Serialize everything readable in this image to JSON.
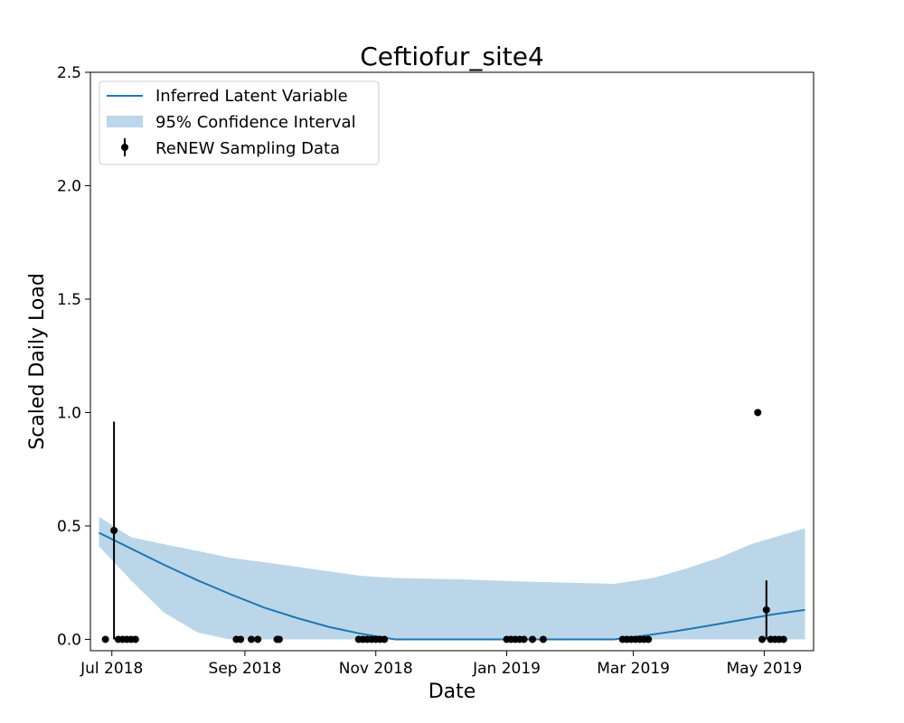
{
  "chart_data": {
    "type": "line",
    "title": "Ceftiofur_site4",
    "xlabel": "Date",
    "ylabel": "Scaled Daily Load",
    "xlim": [
      "2018-06-21",
      "2019-05-24"
    ],
    "ylim": [
      -0.05,
      2.5
    ],
    "x_ticks": [
      {
        "date": "2018-07-01",
        "label": "Jul 2018"
      },
      {
        "date": "2018-09-01",
        "label": "Sep 2018"
      },
      {
        "date": "2018-11-01",
        "label": "Nov 2018"
      },
      {
        "date": "2019-01-01",
        "label": "Jan 2019"
      },
      {
        "date": "2019-03-01",
        "label": "Mar 2019"
      },
      {
        "date": "2019-05-01",
        "label": "May 2019"
      }
    ],
    "y_ticks": [
      {
        "value": 0.0,
        "label": "0.0"
      },
      {
        "value": 0.5,
        "label": "0.5"
      },
      {
        "value": 1.0,
        "label": "1.0"
      },
      {
        "value": 1.5,
        "label": "1.5"
      },
      {
        "value": 2.0,
        "label": "2.0"
      },
      {
        "value": 2.5,
        "label": "2.5"
      }
    ],
    "grid": false,
    "legend_position": "top-left",
    "legend": [
      {
        "label": "Inferred Latent Variable",
        "kind": "line",
        "color": "#1f77b4"
      },
      {
        "label": "95% Confidence Interval",
        "kind": "band",
        "color": "#bcd6ea"
      },
      {
        "label": "ReNEW Sampling Data",
        "kind": "errorbar",
        "color": "#000000"
      }
    ],
    "series": [
      {
        "name": "Inferred Latent Variable",
        "type": "line",
        "color": "#1f77b4",
        "points": [
          {
            "x": "2018-06-25",
            "y": 0.47
          },
          {
            "x": "2018-07-10",
            "y": 0.4
          },
          {
            "x": "2018-07-25",
            "y": 0.33
          },
          {
            "x": "2018-08-10",
            "y": 0.26
          },
          {
            "x": "2018-08-25",
            "y": 0.2
          },
          {
            "x": "2018-09-10",
            "y": 0.14
          },
          {
            "x": "2018-09-25",
            "y": 0.095
          },
          {
            "x": "2018-10-10",
            "y": 0.055
          },
          {
            "x": "2018-10-25",
            "y": 0.025
          },
          {
            "x": "2018-11-10",
            "y": 0.0
          },
          {
            "x": "2019-02-20",
            "y": 0.0
          },
          {
            "x": "2019-03-05",
            "y": 0.015
          },
          {
            "x": "2019-03-20",
            "y": 0.035
          },
          {
            "x": "2019-04-05",
            "y": 0.06
          },
          {
            "x": "2019-04-20",
            "y": 0.085
          },
          {
            "x": "2019-05-05",
            "y": 0.11
          },
          {
            "x": "2019-05-20",
            "y": 0.13
          }
        ]
      },
      {
        "name": "95% Confidence Interval",
        "type": "band",
        "color": "#1f77b4",
        "opacity": 0.3,
        "points": [
          {
            "x": "2018-06-25",
            "lower": 0.41,
            "upper": 0.54
          },
          {
            "x": "2018-07-10",
            "lower": 0.26,
            "upper": 0.45
          },
          {
            "x": "2018-07-25",
            "lower": 0.12,
            "upper": 0.42
          },
          {
            "x": "2018-08-10",
            "lower": 0.03,
            "upper": 0.39
          },
          {
            "x": "2018-08-25",
            "lower": 0.0,
            "upper": 0.36
          },
          {
            "x": "2018-09-10",
            "lower": 0.0,
            "upper": 0.34
          },
          {
            "x": "2018-09-25",
            "lower": 0.0,
            "upper": 0.32
          },
          {
            "x": "2018-10-10",
            "lower": 0.0,
            "upper": 0.3
          },
          {
            "x": "2018-10-25",
            "lower": 0.0,
            "upper": 0.28
          },
          {
            "x": "2018-11-10",
            "lower": 0.0,
            "upper": 0.27
          },
          {
            "x": "2018-12-10",
            "lower": 0.0,
            "upper": 0.265
          },
          {
            "x": "2019-01-10",
            "lower": 0.0,
            "upper": 0.255
          },
          {
            "x": "2019-02-20",
            "lower": 0.0,
            "upper": 0.245
          },
          {
            "x": "2019-03-10",
            "lower": 0.0,
            "upper": 0.27
          },
          {
            "x": "2019-03-25",
            "lower": 0.0,
            "upper": 0.31
          },
          {
            "x": "2019-04-10",
            "lower": 0.0,
            "upper": 0.36
          },
          {
            "x": "2019-04-25",
            "lower": 0.0,
            "upper": 0.42
          },
          {
            "x": "2019-05-20",
            "lower": 0.0,
            "upper": 0.49
          }
        ]
      },
      {
        "name": "ReNEW Sampling Data",
        "type": "errorbar",
        "color": "#000000",
        "points": [
          {
            "x": "2018-06-28",
            "y": 0.0
          },
          {
            "x": "2018-07-02",
            "y": 0.48,
            "yerr_low": 0.0,
            "yerr_high": 0.96
          },
          {
            "x": "2018-07-04",
            "y": 0.0
          },
          {
            "x": "2018-07-06",
            "y": 0.0
          },
          {
            "x": "2018-07-08",
            "y": 0.0
          },
          {
            "x": "2018-07-10",
            "y": 0.0
          },
          {
            "x": "2018-07-12",
            "y": 0.0
          },
          {
            "x": "2018-08-28",
            "y": 0.0
          },
          {
            "x": "2018-08-30",
            "y": 0.0
          },
          {
            "x": "2018-09-04",
            "y": 0.0
          },
          {
            "x": "2018-09-07",
            "y": 0.0
          },
          {
            "x": "2018-09-16",
            "y": 0.0
          },
          {
            "x": "2018-09-17",
            "y": 0.0
          },
          {
            "x": "2018-10-24",
            "y": 0.0
          },
          {
            "x": "2018-10-26",
            "y": 0.0
          },
          {
            "x": "2018-10-28",
            "y": 0.0
          },
          {
            "x": "2018-10-30",
            "y": 0.0
          },
          {
            "x": "2018-11-01",
            "y": 0.0
          },
          {
            "x": "2018-11-03",
            "y": 0.0
          },
          {
            "x": "2018-11-05",
            "y": 0.0
          },
          {
            "x": "2019-01-01",
            "y": 0.0
          },
          {
            "x": "2019-01-03",
            "y": 0.0
          },
          {
            "x": "2019-01-05",
            "y": 0.0
          },
          {
            "x": "2019-01-07",
            "y": 0.0
          },
          {
            "x": "2019-01-09",
            "y": 0.0
          },
          {
            "x": "2019-01-13",
            "y": 0.0
          },
          {
            "x": "2019-01-18",
            "y": 0.0
          },
          {
            "x": "2019-02-24",
            "y": 0.0
          },
          {
            "x": "2019-02-26",
            "y": 0.0
          },
          {
            "x": "2019-02-28",
            "y": 0.0
          },
          {
            "x": "2019-03-02",
            "y": 0.0
          },
          {
            "x": "2019-03-04",
            "y": 0.0
          },
          {
            "x": "2019-03-06",
            "y": 0.0
          },
          {
            "x": "2019-03-08",
            "y": 0.0
          },
          {
            "x": "2019-04-28",
            "y": 1.0
          },
          {
            "x": "2019-04-30",
            "y": 0.0
          },
          {
            "x": "2019-05-02",
            "y": 0.13,
            "yerr_low": 0.0,
            "yerr_high": 0.26
          },
          {
            "x": "2019-05-04",
            "y": 0.0
          },
          {
            "x": "2019-05-06",
            "y": 0.0
          },
          {
            "x": "2019-05-08",
            "y": 0.0
          },
          {
            "x": "2019-05-10",
            "y": 0.0
          }
        ]
      }
    ]
  }
}
